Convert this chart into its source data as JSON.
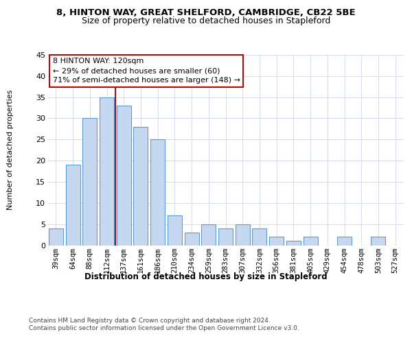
{
  "title1": "8, HINTON WAY, GREAT SHELFORD, CAMBRIDGE, CB22 5BE",
  "title2": "Size of property relative to detached houses in Stapleford",
  "xlabel": "Distribution of detached houses by size in Stapleford",
  "ylabel": "Number of detached properties",
  "categories": [
    "39sqm",
    "64sqm",
    "88sqm",
    "112sqm",
    "137sqm",
    "161sqm",
    "186sqm",
    "210sqm",
    "234sqm",
    "259sqm",
    "283sqm",
    "307sqm",
    "332sqm",
    "356sqm",
    "381sqm",
    "405sqm",
    "429sqm",
    "454sqm",
    "478sqm",
    "503sqm",
    "527sqm"
  ],
  "values": [
    4,
    19,
    30,
    35,
    33,
    28,
    25,
    7,
    3,
    5,
    4,
    5,
    4,
    2,
    1,
    2,
    0,
    2,
    0,
    2,
    0
  ],
  "bar_color": "#c5d8f0",
  "bar_edge_color": "#5b9bd5",
  "highlight_bar_index": 3,
  "highlight_line_color": "#cc0000",
  "annotation_text": "8 HINTON WAY: 120sqm\n← 29% of detached houses are smaller (60)\n71% of semi-detached houses are larger (148) →",
  "annotation_box_color": "#ffffff",
  "annotation_box_edge": "#cc0000",
  "footer1": "Contains HM Land Registry data © Crown copyright and database right 2024.",
  "footer2": "Contains public sector information licensed under the Open Government Licence v3.0.",
  "ylim": [
    0,
    45
  ],
  "yticks": [
    0,
    5,
    10,
    15,
    20,
    25,
    30,
    35,
    40,
    45
  ],
  "background_color": "#ffffff",
  "grid_color": "#d0d8e8"
}
